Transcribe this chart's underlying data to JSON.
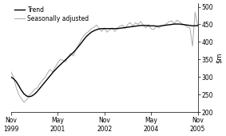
{
  "title": "",
  "ylim": [
    200,
    510
  ],
  "yticks": [
    200,
    250,
    300,
    350,
    400,
    450,
    500
  ],
  "xtick_labels": [
    "Nov\n1999",
    "May\n2001",
    "Nov\n2002",
    "May\n2004",
    "Nov\n2005"
  ],
  "xtick_positions": [
    0,
    18,
    36,
    54,
    72
  ],
  "trend_color": "#000000",
  "seas_color": "#aaaaaa",
  "legend_entries": [
    "Trend",
    "Seasonally adjusted"
  ],
  "background_color": "#ffffff",
  "trend_values": [
    300,
    295,
    287,
    275,
    262,
    252,
    246,
    244,
    246,
    251,
    258,
    267,
    276,
    285,
    294,
    303,
    312,
    320,
    328,
    335,
    342,
    349,
    356,
    363,
    370,
    378,
    387,
    396,
    406,
    415,
    422,
    428,
    432,
    435,
    437,
    438,
    438,
    438,
    438,
    438,
    438,
    438,
    439,
    440,
    441,
    442,
    443,
    444,
    445,
    446,
    447,
    447,
    447,
    446,
    446,
    446,
    445,
    445,
    446,
    447,
    448,
    449,
    450,
    451,
    451,
    451,
    450,
    449,
    448,
    447,
    446,
    446,
    447
  ],
  "seas_values": [
    315,
    298,
    270,
    250,
    238,
    228,
    235,
    248,
    255,
    265,
    268,
    280,
    290,
    298,
    310,
    322,
    315,
    328,
    340,
    350,
    348,
    343,
    358,
    368,
    360,
    378,
    392,
    405,
    418,
    425,
    430,
    438,
    442,
    448,
    438,
    430,
    440,
    428,
    435,
    440,
    430,
    440,
    445,
    448,
    438,
    450,
    455,
    445,
    455,
    450,
    458,
    448,
    440,
    450,
    438,
    435,
    445,
    440,
    445,
    448,
    452,
    458,
    460,
    452,
    462,
    457,
    452,
    448,
    443,
    440,
    388,
    485,
    445
  ]
}
